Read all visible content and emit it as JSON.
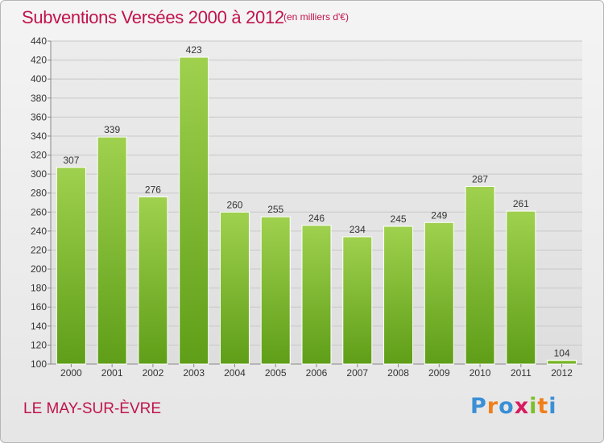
{
  "title": "Subventions Versées 2000 à 2012",
  "subtitle": "(en milliers d'€)",
  "city": "LE MAY-SUR-ÈVRE",
  "logo": {
    "text": "Proxiti",
    "letters": [
      {
        "ch": "P",
        "color": "#3a8fd6"
      },
      {
        "ch": "r",
        "color": "#f07f1a"
      },
      {
        "ch": "o",
        "color": "#3a8fd6"
      },
      {
        "ch": "x",
        "color": "#d81b60"
      },
      {
        "ch": "i",
        "color": "#7cbf2a"
      },
      {
        "ch": "t",
        "color": "#f07f1a"
      },
      {
        "ch": "i",
        "color": "#3a8fd6"
      }
    ]
  },
  "chart_data": {
    "type": "bar",
    "title": "Subventions Versées 2000 à 2012",
    "subtitle": "(en milliers d'€)",
    "categories": [
      "2000",
      "2001",
      "2002",
      "2003",
      "2004",
      "2005",
      "2006",
      "2007",
      "2008",
      "2009",
      "2010",
      "2011",
      "2012"
    ],
    "values": [
      307,
      339,
      276,
      423,
      260,
      255,
      246,
      234,
      245,
      249,
      287,
      261,
      104
    ],
    "ylim": [
      100,
      440
    ],
    "yticks": [
      100,
      120,
      140,
      160,
      180,
      200,
      220,
      240,
      260,
      280,
      300,
      320,
      340,
      360,
      380,
      400,
      420,
      440
    ],
    "grid": true,
    "bar_color_top": "#9fd14e",
    "bar_color_bottom": "#5f9e18",
    "title_color": "#c0144a"
  }
}
